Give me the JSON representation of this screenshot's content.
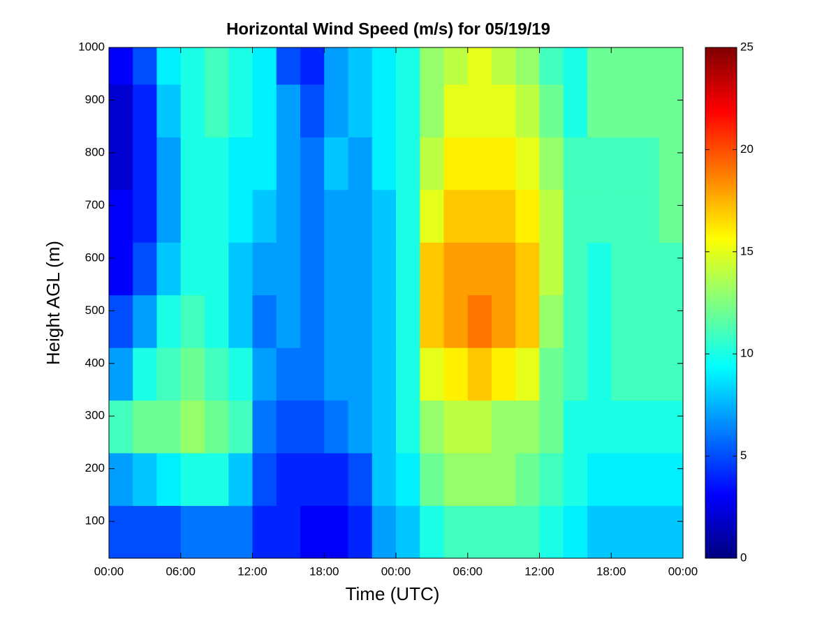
{
  "chart_data": {
    "type": "heatmap",
    "title": "Horizontal Wind Speed (m/s) for 05/19/19",
    "x_label": "Time (UTC)",
    "y_label": "Height AGL (m)",
    "x": [
      1,
      3,
      5,
      7,
      9,
      11,
      13,
      15,
      17,
      19,
      21,
      23,
      25,
      27,
      29,
      31,
      33,
      35,
      37,
      39,
      41,
      43,
      45,
      47
    ],
    "y": [
      80,
      180,
      280,
      380,
      480,
      580,
      680,
      780,
      880,
      980
    ],
    "z": [
      [
        5,
        5,
        5,
        6,
        6,
        6,
        4,
        4,
        3,
        3,
        4,
        7,
        8,
        10,
        11,
        11,
        11,
        11,
        10,
        9,
        8,
        8,
        8,
        8
      ],
      [
        7,
        8,
        9,
        10,
        10,
        8,
        5,
        4,
        4,
        4,
        5,
        8,
        9,
        12,
        13,
        13,
        13,
        12,
        11,
        10,
        9,
        9,
        9,
        9
      ],
      [
        11,
        12,
        12,
        13,
        12,
        11,
        6,
        5,
        5,
        6,
        7,
        8,
        10,
        13,
        14,
        14,
        13,
        13,
        12,
        10,
        10,
        10,
        10,
        10
      ],
      [
        7,
        10,
        11,
        12,
        11,
        10,
        7,
        6,
        6,
        7,
        7,
        8,
        10,
        15,
        16,
        17,
        16,
        15,
        12,
        11,
        10,
        11,
        11,
        11
      ],
      [
        5,
        7,
        10,
        11,
        10,
        8,
        6,
        7,
        6,
        7,
        7,
        8,
        10,
        17,
        18,
        19,
        18,
        17,
        13,
        11,
        10,
        11,
        11,
        11
      ],
      [
        3,
        5,
        8,
        10,
        10,
        8,
        7,
        7,
        6,
        7,
        7,
        8,
        10,
        17,
        18,
        18,
        18,
        17,
        14,
        11,
        10,
        11,
        11,
        11
      ],
      [
        3,
        4,
        7,
        10,
        10,
        9,
        8,
        7,
        6,
        7,
        7,
        8,
        10,
        15,
        17,
        17,
        17,
        16,
        14,
        11,
        11,
        11,
        11,
        12
      ],
      [
        2,
        4,
        7,
        10,
        10,
        9,
        9,
        7,
        6,
        8,
        7,
        9,
        10,
        14,
        16,
        16,
        16,
        15,
        13,
        11,
        11,
        11,
        11,
        12
      ],
      [
        2,
        4,
        8,
        10,
        11,
        10,
        9,
        7,
        5,
        7,
        8,
        9,
        10,
        13,
        15,
        15,
        15,
        14,
        12,
        10,
        12,
        12,
        12,
        12
      ],
      [
        3,
        5,
        9,
        10,
        11,
        10,
        9,
        5,
        4,
        7,
        8,
        9,
        10,
        13,
        14,
        15,
        14,
        13,
        11,
        10,
        12,
        12,
        12,
        12
      ]
    ],
    "xlim": [
      0,
      48
    ],
    "xticks": [
      {
        "value": 0,
        "label": "00:00"
      },
      {
        "value": 6,
        "label": "06:00"
      },
      {
        "value": 12,
        "label": "12:00"
      },
      {
        "value": 18,
        "label": "18:00"
      },
      {
        "value": 24,
        "label": "00:00"
      },
      {
        "value": 30,
        "label": "06:00"
      },
      {
        "value": 36,
        "label": "12:00"
      },
      {
        "value": 42,
        "label": "18:00"
      },
      {
        "value": 48,
        "label": "00:00"
      }
    ],
    "ylim": [
      30,
      1000
    ],
    "yticks": [
      100,
      200,
      300,
      400,
      500,
      600,
      700,
      800,
      900,
      1000
    ],
    "colorbar": {
      "lim": [
        0,
        25
      ],
      "ticks": [
        0,
        5,
        10,
        15,
        20,
        25
      ]
    },
    "colormap": "jet"
  }
}
